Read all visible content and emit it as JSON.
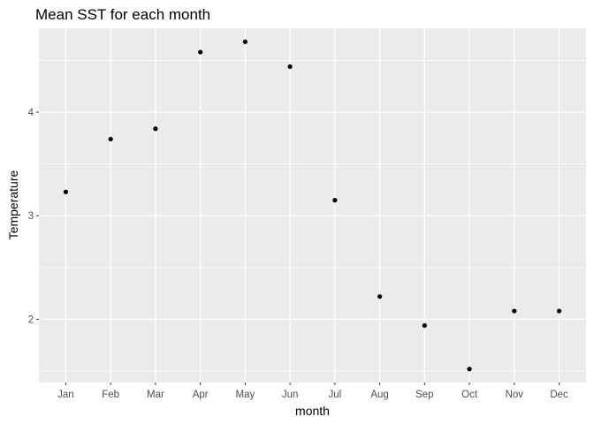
{
  "chart_data": {
    "type": "scatter",
    "title": "Mean SST for each month",
    "xlabel": "month",
    "ylabel": "Temperature",
    "categories": [
      "Jan",
      "Feb",
      "Mar",
      "Apr",
      "May",
      "Jun",
      "Jul",
      "Aug",
      "Sep",
      "Oct",
      "Nov",
      "Dec"
    ],
    "values": [
      3.23,
      3.74,
      3.84,
      4.58,
      4.68,
      4.44,
      3.15,
      2.22,
      1.94,
      1.52,
      2.08,
      2.08
    ],
    "y_ticks": [
      2,
      3,
      4
    ],
    "ylim": [
      1.39,
      4.81
    ],
    "grid": true,
    "point_color": "#000000",
    "panel_background": "#ebebeb",
    "grid_color": "#ffffff"
  }
}
